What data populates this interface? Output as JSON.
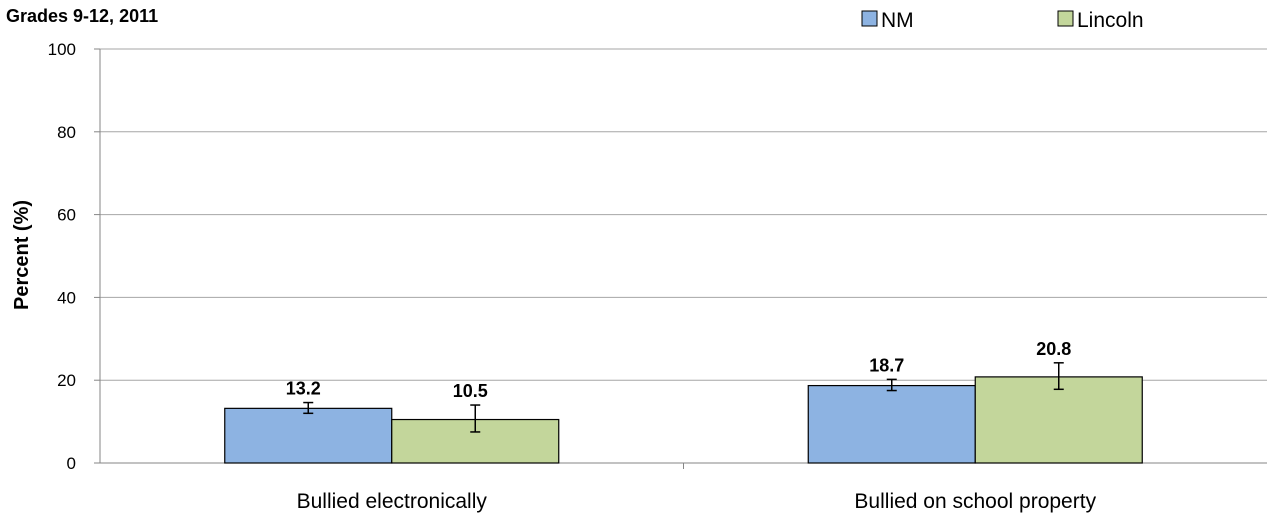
{
  "chart_data": {
    "type": "bar",
    "title": "Grades 9-12, 2011",
    "ylabel": "Percent (%)",
    "xlabel": "",
    "ylim": [
      0,
      100
    ],
    "yticks": [
      0,
      20,
      40,
      60,
      80,
      100
    ],
    "grid": true,
    "legend_position": "top-right",
    "categories": [
      "Bullied electronically",
      "Bullied on school property"
    ],
    "series": [
      {
        "name": "NM",
        "color": "#8DB3E2",
        "values": [
          13.2,
          18.7
        ],
        "error_low": [
          12.0,
          17.5
        ],
        "error_high": [
          14.6,
          20.2
        ]
      },
      {
        "name": "Lincoln",
        "color": "#C3D69B",
        "values": [
          10.5,
          20.8
        ],
        "error_low": [
          7.5,
          17.8
        ],
        "error_high": [
          14.0,
          24.2
        ]
      }
    ]
  }
}
